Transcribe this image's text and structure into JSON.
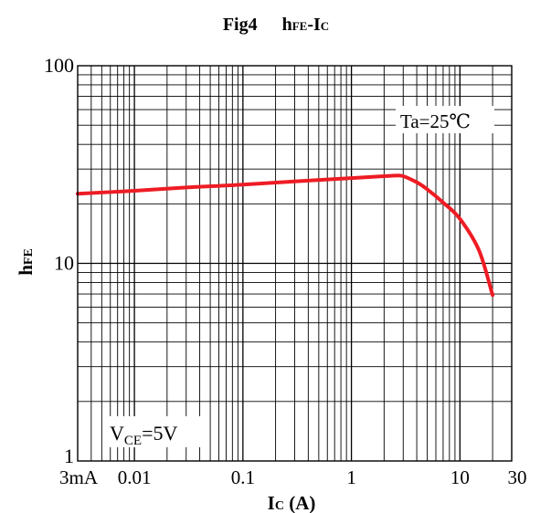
{
  "title": {
    "fig": "Fig4",
    "main": "h",
    "main_sub": "FE",
    "dash": "-I",
    "dash_sub": "C"
  },
  "ylabel": {
    "main": "h",
    "sub": "FE"
  },
  "xlabel": {
    "main": "I",
    "sub": "C",
    "unit": " (A)"
  },
  "annotations": {
    "ta": "Ta=25℃",
    "vce": {
      "main": "V",
      "sub": "CE",
      "rest": "=5V"
    }
  },
  "colors": {
    "curve": "#ee1c24",
    "grid": "#000000",
    "frame": "#000000"
  },
  "chart_data": {
    "type": "line",
    "title": "Fig4 hFE-IC",
    "xlabel": "IC (A)",
    "ylabel": "hFE",
    "xscale": "log",
    "yscale": "log",
    "xlim": [
      0.003,
      30
    ],
    "ylim": [
      1,
      100
    ],
    "grid": true,
    "x_tick_labels": [
      {
        "value": 0.003,
        "label": "3mA"
      },
      {
        "value": 0.01,
        "label": "0.01"
      },
      {
        "value": 0.1,
        "label": "0.1"
      },
      {
        "value": 1,
        "label": "1"
      },
      {
        "value": 10,
        "label": "10"
      },
      {
        "value": 30,
        "label": "30"
      }
    ],
    "y_tick_labels": [
      {
        "value": 1,
        "label": "1"
      },
      {
        "value": 10,
        "label": "10"
      },
      {
        "value": 100,
        "label": "100"
      }
    ],
    "series": [
      {
        "x": [
          0.003,
          0.01,
          0.03,
          0.1,
          0.3,
          1,
          2,
          2.5,
          3,
          4,
          5,
          7,
          10,
          15,
          20
        ],
        "y": [
          22.5,
          23.3,
          24.2,
          25.0,
          26.0,
          27.0,
          27.6,
          27.8,
          27.6,
          25.7,
          23.7,
          20.3,
          16.8,
          11.6,
          6.9
        ]
      }
    ]
  }
}
